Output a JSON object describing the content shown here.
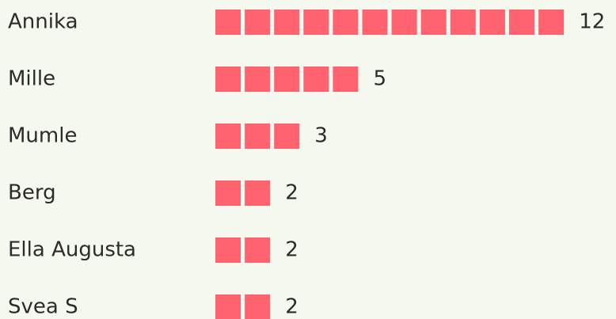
{
  "chart_data": {
    "type": "unit-bar",
    "categories": [
      "Annika",
      "Mille",
      "Mumle",
      "Berg",
      "Ella Augusta",
      "Svea S"
    ],
    "values": [
      12,
      5,
      3,
      2,
      2,
      2
    ],
    "color": "#ff6370"
  }
}
